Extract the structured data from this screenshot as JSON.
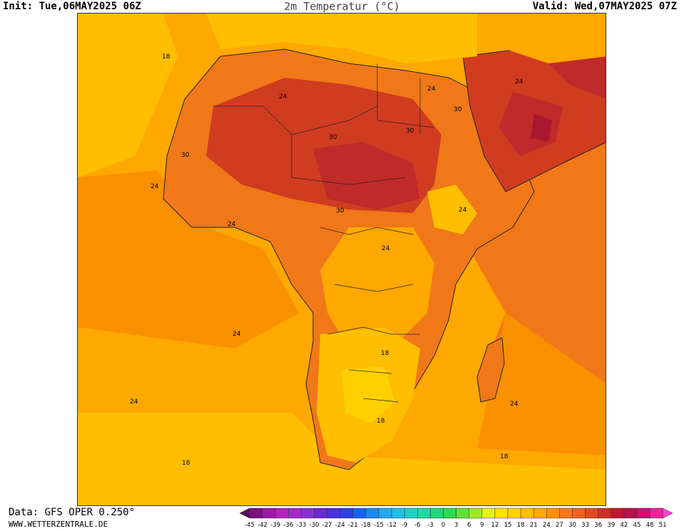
{
  "header": {
    "init": "Init: Tue,06MAY2025 06Z",
    "title": "2m Temperatur (°C)",
    "valid": "Valid: Wed,07MAY2025 07Z"
  },
  "footer": {
    "source": "Data: GFS OPER 0.250°",
    "website": "WWW.WETTERZENTRALE.DE"
  },
  "map": {
    "contour_labels": [
      "18",
      "24",
      "30",
      "30",
      "30",
      "30",
      "30",
      "24",
      "24",
      "24",
      "24",
      "24",
      "24",
      "24",
      "18",
      "18",
      "24",
      "18",
      "18",
      "24"
    ]
  },
  "legend": {
    "ticks": [
      "-45",
      "-42",
      "-39",
      "-36",
      "-33",
      "-30",
      "-27",
      "-24",
      "-21",
      "-18",
      "-15",
      "-12",
      "-9",
      "-6",
      "-3",
      "0",
      "3",
      "6",
      "9",
      "12",
      "15",
      "18",
      "21",
      "24",
      "27",
      "30",
      "33",
      "36",
      "39",
      "42",
      "45",
      "48",
      "51"
    ],
    "colors": [
      "#5a0a5e",
      "#7a1080",
      "#9e18a6",
      "#b820c0",
      "#a028c8",
      "#8830d0",
      "#6a28d8",
      "#4a30e0",
      "#2a40e8",
      "#1a60f0",
      "#1a88f0",
      "#20a8f0",
      "#20c0e8",
      "#20d0c8",
      "#20d8a0",
      "#20d878",
      "#30d850",
      "#60e030",
      "#a0e828",
      "#e8f020",
      "#ffe000",
      "#ffd000",
      "#ffbe00",
      "#ffa800",
      "#ff9000",
      "#f87818",
      "#f06020",
      "#e04820",
      "#d03020",
      "#c01830",
      "#b81048",
      "#d01070",
      "#f020a0",
      "#ff40d0"
    ]
  },
  "colors": {
    "t9_12": "#ffe000",
    "t15": "#ffd000",
    "t18": "#ffbe00",
    "t21": "#ffa800",
    "t24": "#f99000",
    "t27": "#f07818",
    "t30": "#e05a20",
    "t33": "#d03c20",
    "t36": "#c02a2a",
    "t39": "#a81830"
  }
}
